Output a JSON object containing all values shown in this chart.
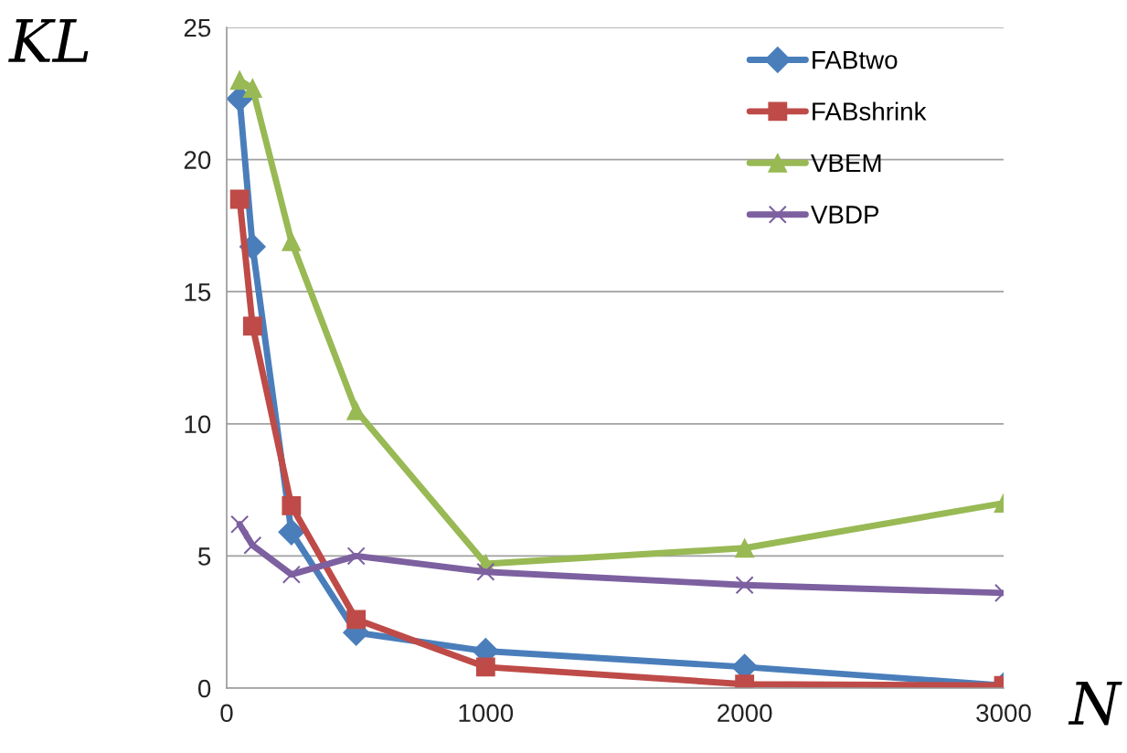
{
  "chart_data": {
    "type": "line",
    "xlabel": "N",
    "ylabel": "KL",
    "x": [
      50,
      100,
      250,
      500,
      1000,
      2000,
      3000
    ],
    "series": [
      {
        "name": "FABtwo",
        "color": "#4a7ebb",
        "marker": "diamond",
        "values": [
          22.3,
          16.7,
          5.9,
          2.1,
          1.4,
          0.8,
          0.1
        ]
      },
      {
        "name": "FABshrink",
        "color": "#be4b48",
        "marker": "square",
        "values": [
          18.5,
          13.7,
          6.9,
          2.6,
          0.8,
          0.15,
          0.1
        ]
      },
      {
        "name": "VBEM",
        "color": "#98b954",
        "marker": "triangle",
        "values": [
          23.0,
          22.7,
          16.9,
          10.5,
          4.7,
          5.3,
          7.0
        ]
      },
      {
        "name": "VBDP",
        "color": "#7d60a0",
        "marker": "cross",
        "values": [
          6.2,
          5.4,
          4.3,
          5.0,
          4.4,
          3.9,
          3.6
        ]
      }
    ],
    "xlim": [
      0,
      3000
    ],
    "xticks": [
      0,
      1000,
      2000,
      3000
    ],
    "ylim": [
      0,
      25
    ],
    "yticks": [
      0,
      5,
      10,
      15,
      20,
      25
    ],
    "grid": "y",
    "legend": "top right",
    "line_style": "solid"
  }
}
